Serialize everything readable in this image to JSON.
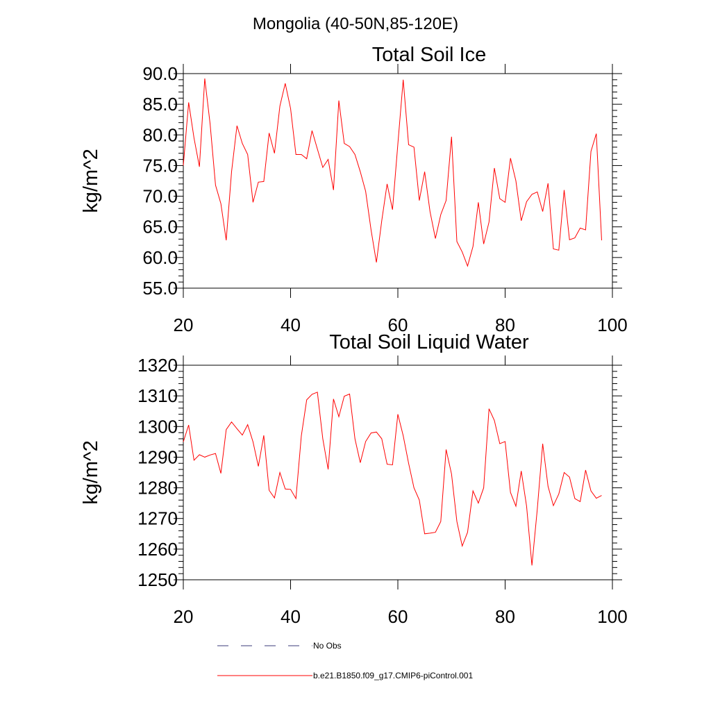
{
  "figure": {
    "title": "Mongolia (40-50N,85-120E)"
  },
  "colors": {
    "model_line": "#ff0000",
    "obs_line": "#3a3a7a",
    "axis": "#000000"
  },
  "legend": {
    "placement": "bottom-left",
    "items": [
      {
        "label": "No Obs",
        "color": "#3a3a7a",
        "style": "dashed"
      },
      {
        "label": "b.e21.B1850.f09_g17.CMIP6-piControl.001",
        "color": "#ff0000",
        "style": "solid"
      }
    ]
  },
  "chart_data": [
    {
      "type": "line",
      "title": "Total Soil Ice",
      "xlabel": "",
      "ylabel": "kg/m^2",
      "xlim": [
        20,
        100
      ],
      "ylim": [
        55,
        90
      ],
      "xticks": [
        20,
        40,
        60,
        80,
        100
      ],
      "xtick_labels": [
        "20",
        "40",
        "60",
        "80",
        "100"
      ],
      "yticks": [
        55,
        60,
        65,
        70,
        75,
        80,
        85,
        90
      ],
      "ytick_labels": [
        "55.0",
        "60.0",
        "65.0",
        "70.0",
        "75.0",
        "80.0",
        "85.0",
        "90.0"
      ],
      "grid": false,
      "series": [
        {
          "color": "#ff0000",
          "x": [
            20,
            21,
            22,
            23,
            24,
            25,
            26,
            27,
            28,
            29,
            30,
            31,
            32,
            33,
            34,
            35,
            36,
            37,
            38,
            39,
            40,
            41,
            42,
            43,
            44,
            45,
            46,
            47,
            48,
            49,
            50,
            51,
            52,
            53,
            54,
            55,
            56,
            57,
            58,
            59,
            60,
            61,
            62,
            63,
            64,
            65,
            66,
            67,
            68,
            69,
            70,
            71,
            72,
            73,
            74,
            75,
            76,
            77,
            78,
            79,
            80,
            81,
            82,
            83,
            84,
            85,
            86,
            87,
            88,
            89,
            90,
            91,
            92,
            93,
            94,
            95,
            96,
            97,
            98
          ],
          "values": [
            75.0,
            85.3,
            79.5,
            74.8,
            89.2,
            81.8,
            71.8,
            68.8,
            62.8,
            74.0,
            81.5,
            78.6,
            76.8,
            69.0,
            72.3,
            72.4,
            80.3,
            77.0,
            84.7,
            88.4,
            84.3,
            76.8,
            76.8,
            76.1,
            80.7,
            77.7,
            74.7,
            76.0,
            71.0,
            85.6,
            78.6,
            78.1,
            76.8,
            74.0,
            70.8,
            64.5,
            59.2,
            66.0,
            72.0,
            67.8,
            78.5,
            89.0,
            78.4,
            78.0,
            69.3,
            74.0,
            67.5,
            63.1,
            67.0,
            69.3,
            79.7,
            62.6,
            60.9,
            58.6,
            61.8,
            69.0,
            62.2,
            65.8,
            74.6,
            69.6,
            69.0,
            76.2,
            72.5,
            66.0,
            69.1,
            70.3,
            70.7,
            67.5,
            72.1,
            61.4,
            61.2,
            71.0,
            62.9,
            63.2,
            64.8,
            64.5,
            77.3,
            80.2,
            62.8
          ]
        }
      ]
    },
    {
      "type": "line",
      "title": "Total Soil Liquid Water",
      "xlabel": "",
      "ylabel": "kg/m^2",
      "xlim": [
        20,
        100
      ],
      "ylim": [
        1250,
        1320
      ],
      "xticks": [
        20,
        40,
        60,
        80,
        100
      ],
      "xtick_labels": [
        "20",
        "40",
        "60",
        "80",
        "100"
      ],
      "yticks": [
        1250,
        1260,
        1270,
        1280,
        1290,
        1300,
        1310,
        1320
      ],
      "ytick_labels": [
        "1250",
        "1260",
        "1270",
        "1280",
        "1290",
        "1300",
        "1310",
        "1320"
      ],
      "grid": false,
      "series": [
        {
          "color": "#ff0000",
          "x": [
            20,
            21,
            22,
            23,
            24,
            25,
            26,
            27,
            28,
            29,
            30,
            31,
            32,
            33,
            34,
            35,
            36,
            37,
            38,
            39,
            40,
            41,
            42,
            43,
            44,
            45,
            46,
            47,
            48,
            49,
            50,
            51,
            52,
            53,
            54,
            55,
            56,
            57,
            58,
            59,
            60,
            61,
            62,
            63,
            64,
            65,
            66,
            67,
            68,
            69,
            70,
            71,
            72,
            73,
            74,
            75,
            76,
            77,
            78,
            79,
            80,
            81,
            82,
            83,
            84,
            85,
            86,
            87,
            88,
            89,
            90,
            91,
            92,
            93,
            94,
            95,
            96,
            97,
            98
          ],
          "values": [
            1295.0,
            1300.5,
            1289.0,
            1290.8,
            1290.0,
            1290.7,
            1291.2,
            1284.7,
            1299.0,
            1301.5,
            1299.3,
            1297.2,
            1300.6,
            1295.0,
            1287.0,
            1297.1,
            1279.2,
            1276.7,
            1285.0,
            1279.6,
            1279.5,
            1276.5,
            1297.0,
            1308.7,
            1310.5,
            1311.2,
            1296.0,
            1286.0,
            1309.0,
            1303.2,
            1309.9,
            1310.6,
            1296.0,
            1288.2,
            1295.1,
            1297.9,
            1298.2,
            1296.0,
            1287.7,
            1287.5,
            1304.0,
            1297.0,
            1288.0,
            1280.0,
            1276.0,
            1265.0,
            1265.2,
            1265.5,
            1269.0,
            1292.5,
            1284.5,
            1269.0,
            1261.0,
            1265.5,
            1279.0,
            1275.0,
            1280.0,
            1305.8,
            1302.0,
            1294.4,
            1295.1,
            1278.5,
            1274.0,
            1285.5,
            1274.0,
            1254.7,
            1273.0,
            1294.4,
            1280.5,
            1274.2,
            1278.0,
            1285.0,
            1283.5,
            1276.5,
            1275.5,
            1285.8,
            1279.0,
            1276.6,
            1277.5
          ]
        }
      ]
    }
  ]
}
